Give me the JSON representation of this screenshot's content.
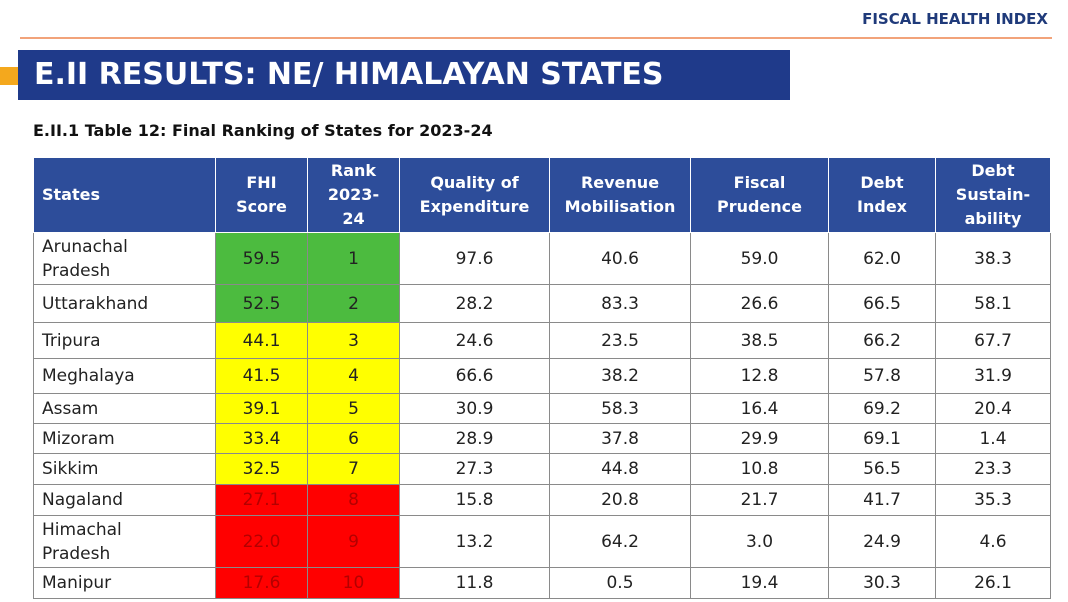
{
  "header": {
    "brand": "FISCAL HEALTH INDEX",
    "title": "E.II RESULTS: NE/ HIMALAYAN STATES",
    "subtitle": "E.II.1 Table 12: Final Ranking of States for 2023-24"
  },
  "table": {
    "columns": [
      "States",
      "FHI\nScore",
      "Rank\n2023-\n24",
      "Quality of\nExpenditure",
      "Revenue\nMobilisation",
      "Fiscal\nPrudence",
      "Debt\nIndex",
      "Debt\nSustain-\nability"
    ],
    "rows": [
      [
        "Arunachal Pradesh",
        "59.5",
        "1",
        "97.6",
        "40.6",
        "59.0",
        "62.0",
        "38.3"
      ],
      [
        "Uttarakhand",
        "52.5",
        "2",
        "28.2",
        "83.3",
        "26.6",
        "66.5",
        "58.1"
      ],
      [
        "Tripura",
        "44.1",
        "3",
        "24.6",
        "23.5",
        "38.5",
        "66.2",
        "67.7"
      ],
      [
        "Meghalaya",
        "41.5",
        "4",
        "66.6",
        "38.2",
        "12.8",
        "57.8",
        "31.9"
      ],
      [
        "Assam",
        "39.1",
        "5",
        "30.9",
        "58.3",
        "16.4",
        "69.2",
        "20.4"
      ],
      [
        "Mizoram",
        "33.4",
        "6",
        "28.9",
        "37.8",
        "29.9",
        "69.1",
        "1.4"
      ],
      [
        "Sikkim",
        "32.5",
        "7",
        "27.3",
        "44.8",
        "10.8",
        "56.5",
        "23.3"
      ],
      [
        "Nagaland",
        "27.1",
        "8",
        "15.8",
        "20.8",
        "21.7",
        "41.7",
        "35.3"
      ],
      [
        "Himachal Pradesh",
        "22.0",
        "9",
        "13.2",
        "64.2",
        "3.0",
        "24.9",
        "4.6"
      ],
      [
        "Manipur",
        "17.6",
        "10",
        "11.8",
        "0.5",
        "19.4",
        "30.3",
        "26.1"
      ]
    ],
    "row_colors": [
      "#4cbb3f",
      "#4cbb3f",
      "#ffff00",
      "#ffff00",
      "#ffff00",
      "#ffff00",
      "#ffff00",
      "#ff0000",
      "#ff0000",
      "#ff0000"
    ]
  }
}
